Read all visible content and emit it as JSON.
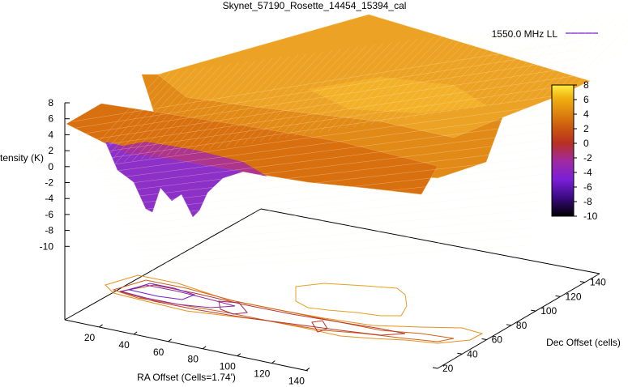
{
  "chart_data": {
    "type": "surface3d",
    "title": "Skynet_57190_Rosette_14454_15394_cal",
    "xlabel": "RA Offset (Cells=1.74')",
    "ylabel": "Dec Offset (cells)",
    "zlabel": "Intensity (K)",
    "legend": {
      "series": "1550.0 MHz LL",
      "placement": "top-right"
    },
    "x_ticks": [
      "20",
      "40",
      "60",
      "80",
      "100",
      "120",
      "140"
    ],
    "y_ticks": [
      "20",
      "40",
      "60",
      "80",
      "100",
      "120",
      "140"
    ],
    "z_ticks": [
      "8",
      "6",
      "4",
      "2",
      "0",
      "-2",
      "-4",
      "-6",
      "-8",
      "-10"
    ],
    "zlim": [
      -10,
      8
    ],
    "colorbar": {
      "ticks": [
        "8",
        "6",
        "4",
        "2",
        "0",
        "-2",
        "-4",
        "-6",
        "-8",
        "-10"
      ],
      "range": [
        -10,
        8
      ],
      "colors": [
        "#000000",
        "#3a0a80",
        "#7a1fd8",
        "#a02aa0",
        "#b83020",
        "#cc5a10",
        "#e08a10",
        "#f0b010",
        "#ffee40"
      ]
    },
    "surface": {
      "baseline_level": 5,
      "min_level": -6,
      "contours": true
    }
  }
}
